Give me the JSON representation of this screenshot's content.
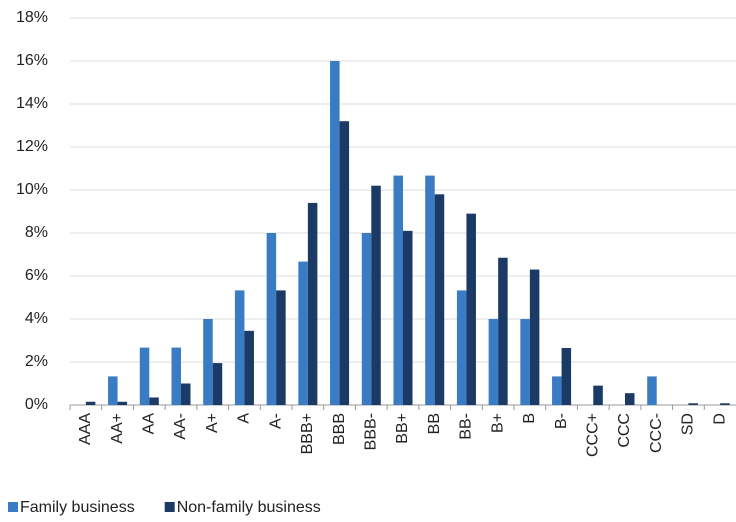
{
  "chart_data": {
    "type": "bar",
    "categories": [
      "AAA",
      "AA+",
      "AA",
      "AA-",
      "A+",
      "A",
      "A-",
      "BBB+",
      "BBB",
      "BBB-",
      "BB+",
      "BB",
      "BB-",
      "B+",
      "B",
      "B-",
      "CCC+",
      "CCC",
      "CCC-",
      "SD",
      "D"
    ],
    "series": [
      {
        "name": "Family business",
        "color": "#3a7cc4",
        "values": [
          0,
          1.33,
          2.67,
          2.67,
          4,
          5.33,
          8,
          6.67,
          16,
          8,
          10.67,
          10.67,
          5.33,
          4,
          4,
          1.33,
          0,
          0,
          1.33,
          0,
          0
        ]
      },
      {
        "name": "Non-family business",
        "color": "#1c3a66",
        "values": [
          0.15,
          0.15,
          0.35,
          1.0,
          1.95,
          3.45,
          5.33,
          9.4,
          13.2,
          10.2,
          8.1,
          9.8,
          8.9,
          6.85,
          6.3,
          2.65,
          0.9,
          0.55,
          0,
          0.08,
          0.08
        ]
      }
    ],
    "ylim": [
      0,
      18
    ],
    "yticks": [
      {
        "value": 0,
        "label": "0%"
      },
      {
        "value": 2,
        "label": "2%"
      },
      {
        "value": 4,
        "label": "4%"
      },
      {
        "value": 6,
        "label": "6%"
      },
      {
        "value": 8,
        "label": "8%"
      },
      {
        "value": 10,
        "label": "10%"
      },
      {
        "value": 12,
        "label": "12%"
      },
      {
        "value": 14,
        "label": "14%"
      },
      {
        "value": 16,
        "label": "16%"
      },
      {
        "value": 18,
        "label": "18%"
      }
    ],
    "grid": true,
    "legend": "bottom-left"
  }
}
